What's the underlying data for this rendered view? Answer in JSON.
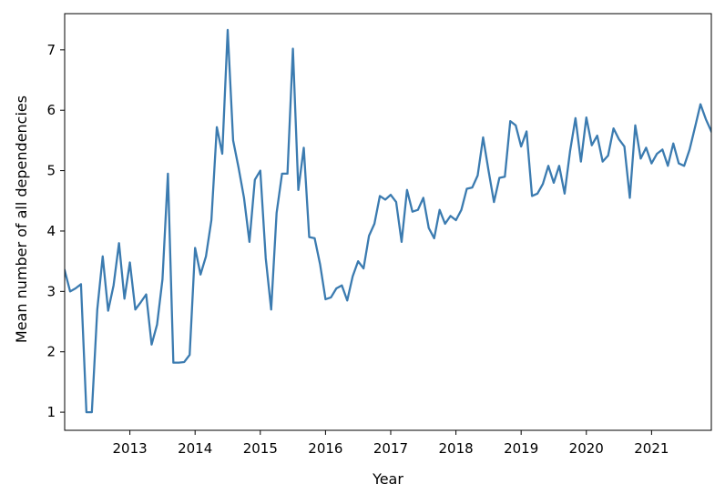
{
  "chart_data": {
    "type": "line",
    "title": "",
    "xlabel": "Year",
    "ylabel": "Mean number of all dependencies",
    "xlim": [
      "2012-01",
      "2021-12"
    ],
    "ylim": [
      0.7,
      7.6
    ],
    "grid": false,
    "legend": "none",
    "line_color": "#3b7bb0",
    "x_ticks": [
      {
        "label": "2013",
        "value": "2013-01"
      },
      {
        "label": "2014",
        "value": "2014-01"
      },
      {
        "label": "2015",
        "value": "2015-01"
      },
      {
        "label": "2016",
        "value": "2016-01"
      },
      {
        "label": "2017",
        "value": "2017-01"
      },
      {
        "label": "2018",
        "value": "2018-01"
      },
      {
        "label": "2019",
        "value": "2019-01"
      },
      {
        "label": "2020",
        "value": "2020-01"
      },
      {
        "label": "2021",
        "value": "2021-01"
      }
    ],
    "y_ticks": [
      1,
      2,
      3,
      4,
      5,
      6,
      7
    ],
    "series": [
      {
        "x": [
          "2012-01",
          "2012-02",
          "2012-03",
          "2012-04",
          "2012-05",
          "2012-06",
          "2012-07",
          "2012-08",
          "2012-09",
          "2012-10",
          "2012-11",
          "2012-12",
          "2013-01",
          "2013-02",
          "2013-03",
          "2013-04",
          "2013-05",
          "2013-06",
          "2013-07",
          "2013-08",
          "2013-09",
          "2013-10",
          "2013-11",
          "2013-12",
          "2014-01",
          "2014-02",
          "2014-03",
          "2014-04",
          "2014-05",
          "2014-06",
          "2014-07",
          "2014-08",
          "2014-09",
          "2014-10",
          "2014-11",
          "2014-12",
          "2015-01",
          "2015-02",
          "2015-03",
          "2015-04",
          "2015-05",
          "2015-06",
          "2015-07",
          "2015-08",
          "2015-09",
          "2015-10",
          "2015-11",
          "2015-12",
          "2016-01",
          "2016-02",
          "2016-03",
          "2016-04",
          "2016-05",
          "2016-06",
          "2016-07",
          "2016-08",
          "2016-09",
          "2016-10",
          "2016-11",
          "2016-12",
          "2017-01",
          "2017-02",
          "2017-03",
          "2017-04",
          "2017-05",
          "2017-06",
          "2017-07",
          "2017-08",
          "2017-09",
          "2017-10",
          "2017-11",
          "2017-12",
          "2018-01",
          "2018-02",
          "2018-03",
          "2018-04",
          "2018-05",
          "2018-06",
          "2018-07",
          "2018-08",
          "2018-09",
          "2018-10",
          "2018-11",
          "2018-12",
          "2019-01",
          "2019-02",
          "2019-03",
          "2019-04",
          "2019-05",
          "2019-06",
          "2019-07",
          "2019-08",
          "2019-09",
          "2019-10",
          "2019-11",
          "2019-12",
          "2020-01",
          "2020-02",
          "2020-03",
          "2020-04",
          "2020-05",
          "2020-06",
          "2020-07",
          "2020-08",
          "2020-09",
          "2020-10",
          "2020-11",
          "2020-12",
          "2021-01",
          "2021-02",
          "2021-03",
          "2021-04",
          "2021-05",
          "2021-06",
          "2021-07",
          "2021-08",
          "2021-09",
          "2021-10",
          "2021-11",
          "2021-12"
        ],
        "y": [
          3.35,
          3.0,
          3.05,
          3.12,
          1.0,
          1.0,
          2.7,
          3.58,
          2.68,
          3.1,
          3.8,
          2.88,
          3.48,
          2.7,
          2.82,
          2.95,
          2.12,
          2.45,
          3.2,
          4.95,
          1.82,
          1.82,
          1.83,
          1.95,
          3.72,
          3.28,
          3.58,
          4.18,
          5.72,
          5.28,
          7.33,
          5.5,
          5.05,
          4.55,
          3.82,
          4.85,
          5.0,
          3.55,
          2.7,
          4.3,
          4.95,
          4.95,
          7.02,
          4.68,
          5.38,
          3.9,
          3.88,
          3.45,
          2.87,
          2.9,
          3.05,
          3.1,
          2.85,
          3.25,
          3.5,
          3.38,
          3.92,
          4.12,
          4.58,
          4.52,
          4.6,
          4.48,
          3.82,
          4.68,
          4.32,
          4.35,
          4.55,
          4.05,
          3.88,
          4.35,
          4.12,
          4.25,
          4.18,
          4.35,
          4.7,
          4.72,
          4.92,
          5.55,
          5.0,
          4.48,
          4.88,
          4.9,
          5.82,
          5.75,
          5.4,
          5.65,
          4.58,
          4.62,
          4.78,
          5.08,
          4.8,
          5.08,
          4.62,
          5.32,
          5.87,
          5.15,
          5.88,
          5.42,
          5.58,
          5.15,
          5.25,
          5.7,
          5.52,
          5.4,
          4.55,
          5.75,
          5.2,
          5.38,
          5.12,
          5.28,
          5.35,
          5.08,
          5.45,
          5.12,
          5.08,
          5.35,
          5.72,
          6.1,
          5.85,
          5.65
        ]
      }
    ]
  }
}
